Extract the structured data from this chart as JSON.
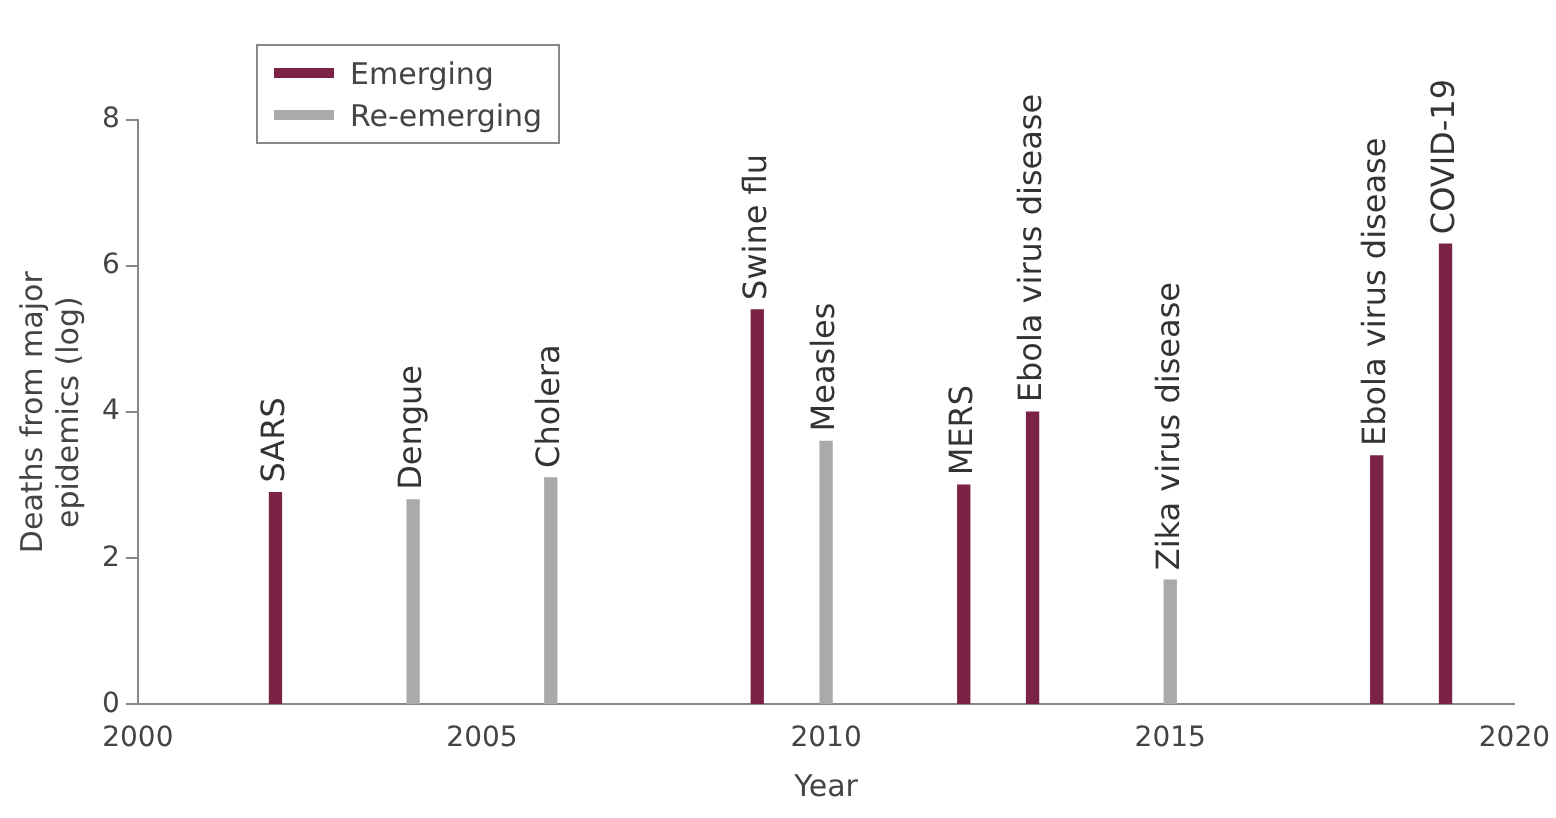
{
  "chart_data": {
    "type": "bar",
    "xlabel": "Year",
    "ylabel": "Deaths from major epidemics (log)",
    "xlim": [
      2000,
      2020
    ],
    "xticks": [
      2000,
      2005,
      2010,
      2015,
      2020
    ],
    "ylim": [
      0,
      8
    ],
    "yticks": [
      0,
      2,
      4,
      6,
      8
    ],
    "grid": false,
    "legend": "top left",
    "series": [
      {
        "name": "Emerging",
        "color": "#7b2346",
        "x": [
          2002,
          2009,
          2012,
          2013,
          2018,
          2019
        ],
        "values": [
          2.9,
          5.4,
          3.0,
          4.0,
          3.4,
          6.3
        ]
      },
      {
        "name": "Re-emerging",
        "color": "#aaaaaa",
        "x": [
          2004,
          2006,
          2010,
          2015
        ],
        "values": [
          2.8,
          3.1,
          3.6,
          1.7
        ]
      }
    ],
    "annotations": [
      {
        "text": "SARS",
        "x": 2002,
        "y": 2.9
      },
      {
        "text": "Dengue",
        "x": 2004,
        "y": 2.8
      },
      {
        "text": "Cholera",
        "x": 2006,
        "y": 3.1
      },
      {
        "text": "Swine flu",
        "x": 2009,
        "y": 5.4
      },
      {
        "text": "Measles",
        "x": 2010,
        "y": 3.6
      },
      {
        "text": "MERS",
        "x": 2012,
        "y": 3.0
      },
      {
        "text": "Ebola virus disease",
        "x": 2013,
        "y": 4.0
      },
      {
        "text": "Zika virus disease",
        "x": 2015,
        "y": 1.7
      },
      {
        "text": "Ebola virus disease",
        "x": 2018,
        "y": 3.4
      },
      {
        "text": "COVID-19",
        "x": 2019,
        "y": 6.3
      }
    ]
  }
}
